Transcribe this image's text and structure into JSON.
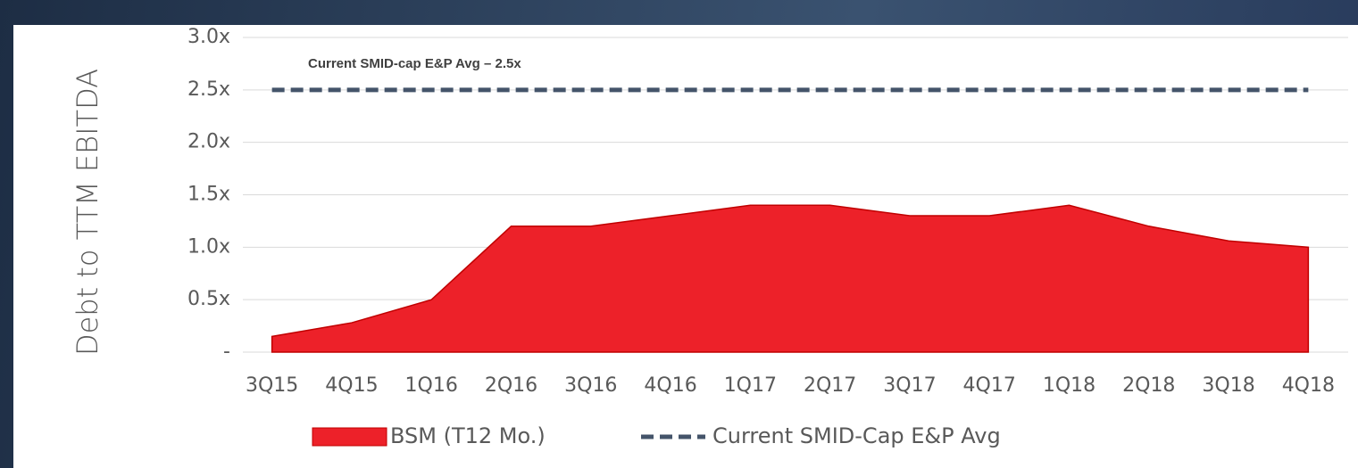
{
  "chart_data": {
    "type": "area",
    "ylabel": "Debt to TTM EBITDA",
    "annotation": "Current SMID-cap E&P Avg – 2.5x",
    "categories": [
      "3Q15",
      "4Q15",
      "1Q16",
      "2Q16",
      "3Q16",
      "4Q16",
      "1Q17",
      "2Q17",
      "3Q17",
      "4Q17",
      "1Q18",
      "2Q18",
      "3Q18",
      "4Q18"
    ],
    "series": [
      {
        "name": "BSM (T12 Mo.)",
        "color": "#ed2129",
        "values": [
          0.15,
          0.28,
          0.5,
          1.2,
          1.2,
          1.3,
          1.4,
          1.4,
          1.3,
          1.3,
          1.4,
          1.2,
          1.06,
          1.0
        ]
      },
      {
        "name": "Current SMID-Cap E&P Avg",
        "color": "#44546a",
        "style": "dashed",
        "values": [
          2.5,
          2.5,
          2.5,
          2.5,
          2.5,
          2.5,
          2.5,
          2.5,
          2.5,
          2.5,
          2.5,
          2.5,
          2.5,
          2.5
        ]
      }
    ],
    "ylim": [
      0,
      3.0
    ],
    "yticks": [
      {
        "value": 0,
        "label": "-"
      },
      {
        "value": 0.5,
        "label": "0.5x"
      },
      {
        "value": 1.0,
        "label": "1.0x"
      },
      {
        "value": 1.5,
        "label": "1.5x"
      },
      {
        "value": 2.0,
        "label": "2.0x"
      },
      {
        "value": 2.5,
        "label": "2.5x"
      },
      {
        "value": 3.0,
        "label": "3.0x"
      }
    ],
    "grid": true,
    "legend": "bottom"
  }
}
